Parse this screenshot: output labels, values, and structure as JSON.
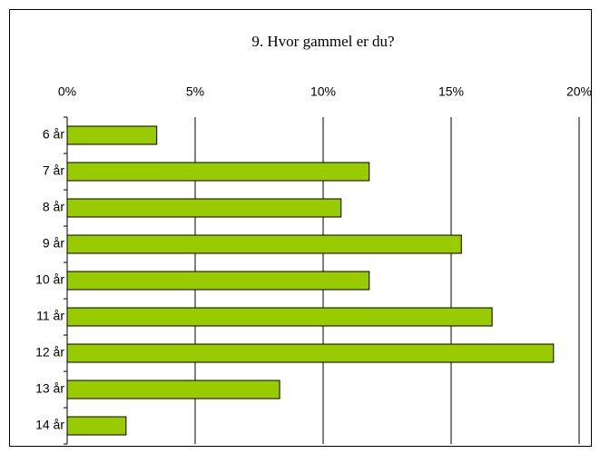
{
  "chart_data": {
    "type": "barh",
    "title": "9. Hvor gammel er du?",
    "categories": [
      "6 år",
      "7 år",
      "8 år",
      "9 år",
      "10 år",
      "11 år",
      "12 år",
      "13 år",
      "14 år"
    ],
    "values": [
      3.5,
      11.8,
      10.7,
      15.4,
      11.8,
      16.6,
      19.0,
      8.3,
      2.3
    ],
    "color": "#99cc00",
    "xlim": [
      0,
      20
    ],
    "xticks": [
      {
        "value": 0,
        "label": "0%"
      },
      {
        "value": 5,
        "label": "5%"
      },
      {
        "value": 10,
        "label": "10%"
      },
      {
        "value": 15,
        "label": "15%"
      },
      {
        "value": 20,
        "label": "20%"
      }
    ],
    "grid": true
  }
}
